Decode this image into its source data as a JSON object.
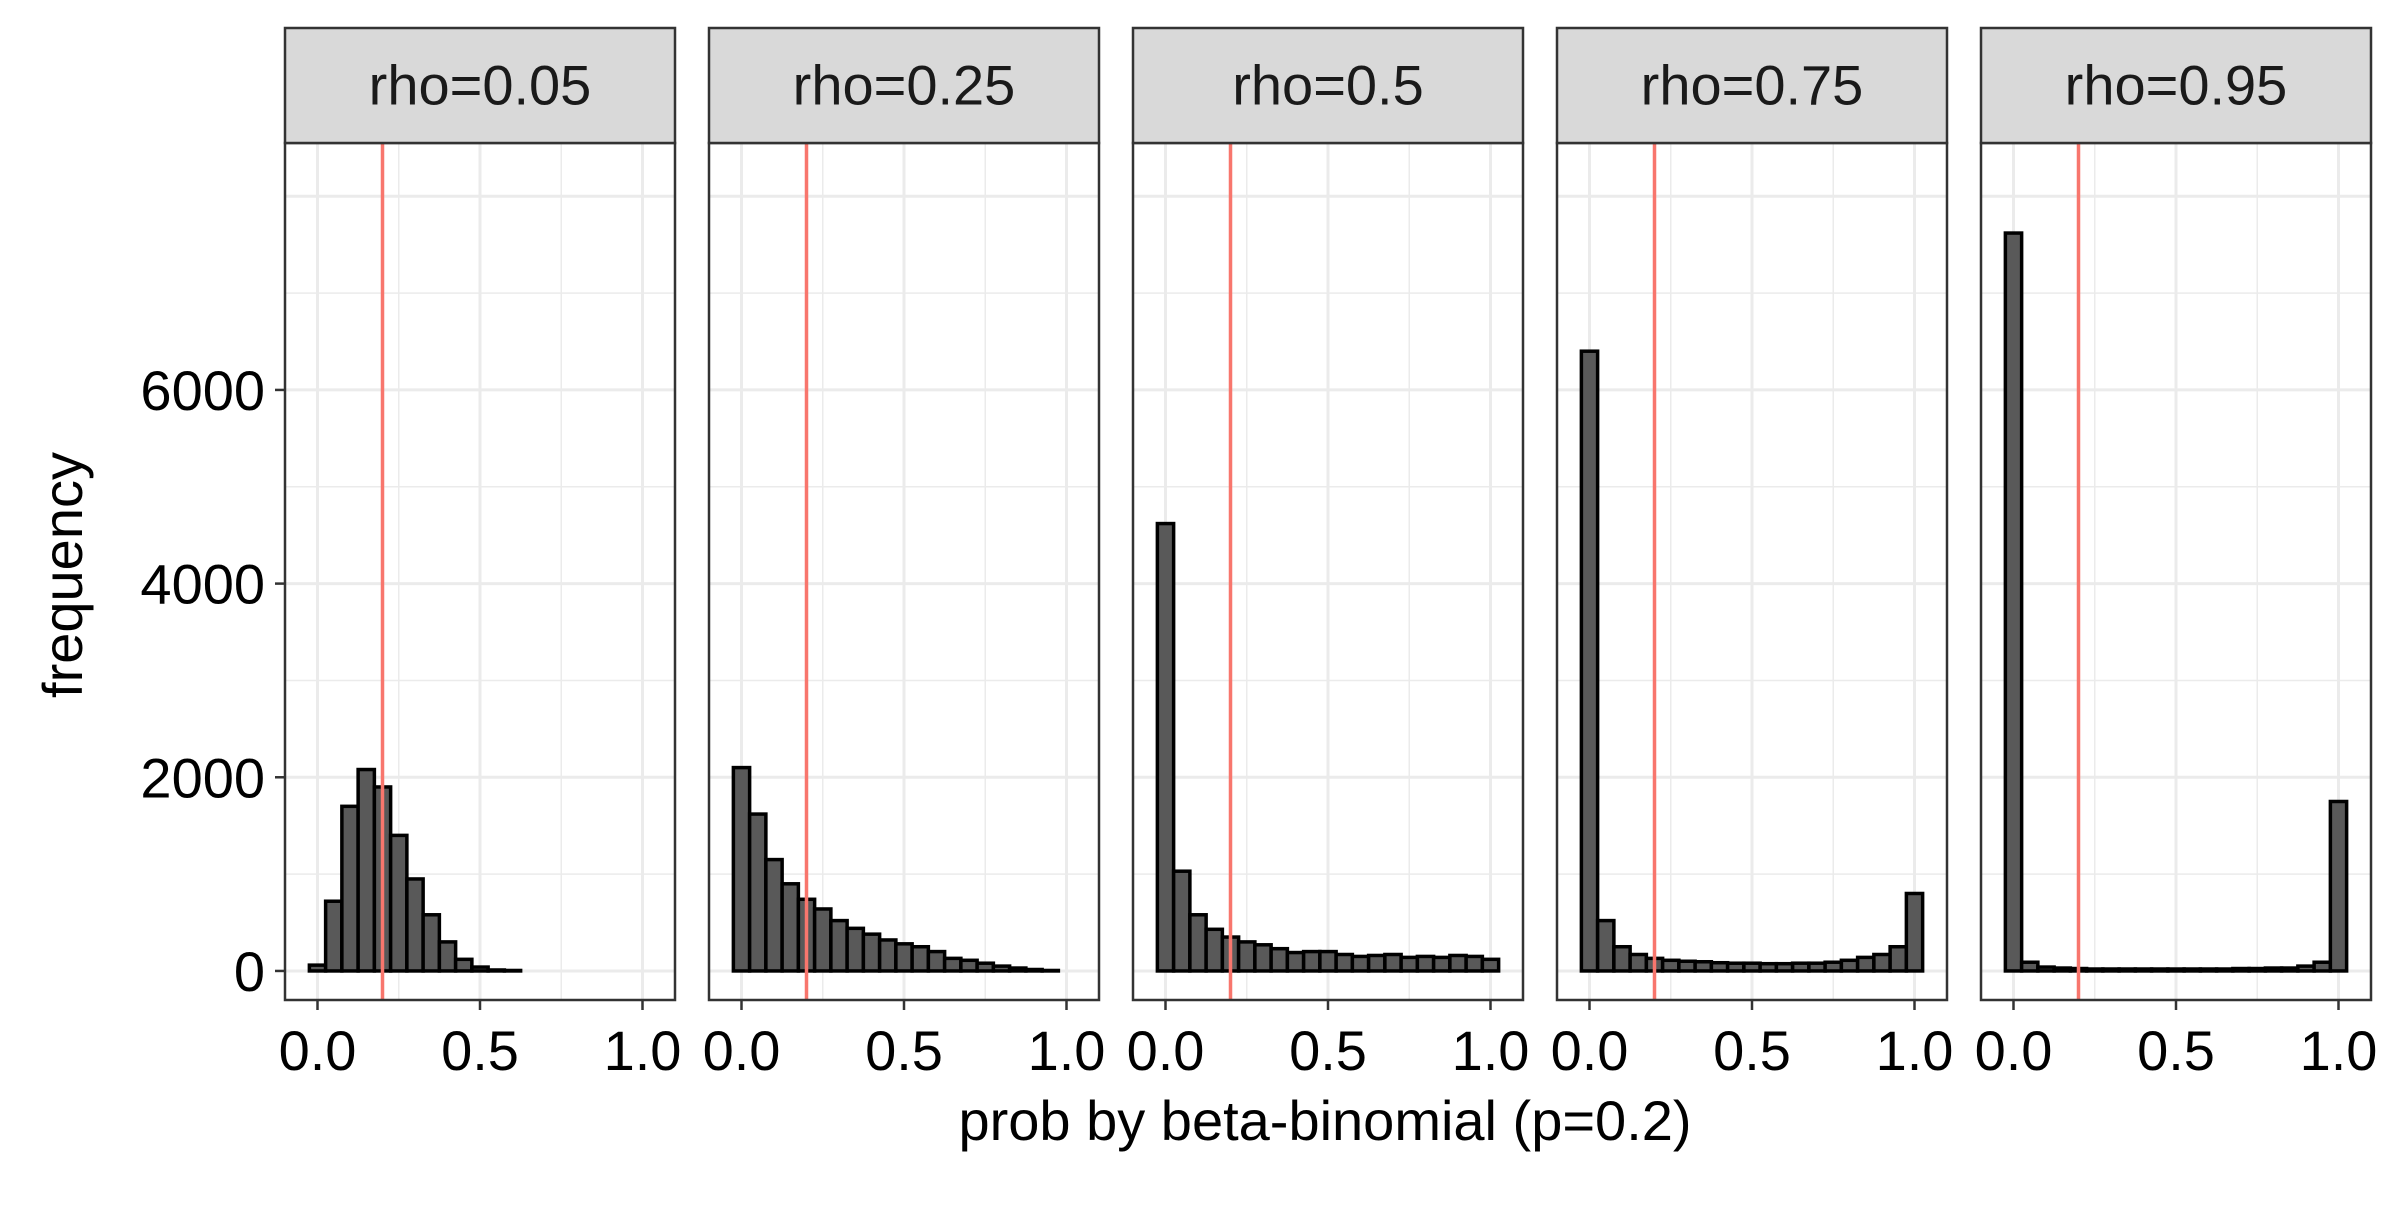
{
  "chart_data": {
    "type": "bar",
    "kind": "faceted-histogram",
    "xlabel": "prob by beta-binomial (p=0.2)",
    "ylabel": "frequency",
    "xlim": [
      -0.1,
      1.1
    ],
    "ylim": [
      -300,
      8550
    ],
    "x_ticks": [
      "0.0",
      "0.5",
      "1.0"
    ],
    "y_ticks": [
      "0",
      "2000",
      "4000",
      "6000"
    ],
    "x_tick_values": [
      0,
      0.5,
      1
    ],
    "y_tick_values": [
      0,
      2000,
      4000,
      6000
    ],
    "bin_width": 0.05,
    "reference_line": {
      "x": 0.2,
      "color": "#F8766D"
    },
    "grid": true,
    "colors": {
      "bar_fill": "#595959",
      "bar_outline": "#000000",
      "strip_fill": "#D9D9D9",
      "grid": "#EBEBEB",
      "panel_border": "#333333",
      "reference_line": "#F8766D"
    },
    "panels": [
      {
        "label": "rho=0.05",
        "bins": [
          {
            "x": -0.05,
            "y": 0
          },
          {
            "x": 0.0,
            "y": 60
          },
          {
            "x": 0.05,
            "y": 720
          },
          {
            "x": 0.1,
            "y": 1700
          },
          {
            "x": 0.15,
            "y": 2080
          },
          {
            "x": 0.2,
            "y": 1900
          },
          {
            "x": 0.25,
            "y": 1400
          },
          {
            "x": 0.3,
            "y": 950
          },
          {
            "x": 0.35,
            "y": 580
          },
          {
            "x": 0.4,
            "y": 300
          },
          {
            "x": 0.45,
            "y": 120
          },
          {
            "x": 0.5,
            "y": 40
          },
          {
            "x": 0.55,
            "y": 10
          },
          {
            "x": 0.6,
            "y": 5
          },
          {
            "x": 0.65,
            "y": 0
          },
          {
            "x": 0.7,
            "y": 0
          },
          {
            "x": 0.75,
            "y": 0
          },
          {
            "x": 0.8,
            "y": 0
          },
          {
            "x": 0.85,
            "y": 0
          },
          {
            "x": 0.9,
            "y": 0
          },
          {
            "x": 0.95,
            "y": 0
          },
          {
            "x": 1.0,
            "y": 0
          },
          {
            "x": 1.05,
            "y": 0
          }
        ]
      },
      {
        "label": "rho=0.25",
        "bins": [
          {
            "x": -0.05,
            "y": 0
          },
          {
            "x": 0.0,
            "y": 2100
          },
          {
            "x": 0.05,
            "y": 1620
          },
          {
            "x": 0.1,
            "y": 1150
          },
          {
            "x": 0.15,
            "y": 900
          },
          {
            "x": 0.2,
            "y": 740
          },
          {
            "x": 0.25,
            "y": 640
          },
          {
            "x": 0.3,
            "y": 520
          },
          {
            "x": 0.35,
            "y": 440
          },
          {
            "x": 0.4,
            "y": 380
          },
          {
            "x": 0.45,
            "y": 320
          },
          {
            "x": 0.5,
            "y": 280
          },
          {
            "x": 0.55,
            "y": 250
          },
          {
            "x": 0.6,
            "y": 200
          },
          {
            "x": 0.65,
            "y": 130
          },
          {
            "x": 0.7,
            "y": 110
          },
          {
            "x": 0.75,
            "y": 80
          },
          {
            "x": 0.8,
            "y": 50
          },
          {
            "x": 0.85,
            "y": 30
          },
          {
            "x": 0.9,
            "y": 15
          },
          {
            "x": 0.95,
            "y": 5
          },
          {
            "x": 1.0,
            "y": 0
          },
          {
            "x": 1.05,
            "y": 0
          }
        ]
      },
      {
        "label": "rho=0.5",
        "bins": [
          {
            "x": -0.05,
            "y": 0
          },
          {
            "x": 0.0,
            "y": 4620
          },
          {
            "x": 0.05,
            "y": 1030
          },
          {
            "x": 0.1,
            "y": 580
          },
          {
            "x": 0.15,
            "y": 430
          },
          {
            "x": 0.2,
            "y": 350
          },
          {
            "x": 0.25,
            "y": 300
          },
          {
            "x": 0.3,
            "y": 270
          },
          {
            "x": 0.35,
            "y": 230
          },
          {
            "x": 0.4,
            "y": 190
          },
          {
            "x": 0.45,
            "y": 200
          },
          {
            "x": 0.5,
            "y": 200
          },
          {
            "x": 0.55,
            "y": 170
          },
          {
            "x": 0.6,
            "y": 150
          },
          {
            "x": 0.65,
            "y": 160
          },
          {
            "x": 0.7,
            "y": 170
          },
          {
            "x": 0.75,
            "y": 140
          },
          {
            "x": 0.8,
            "y": 150
          },
          {
            "x": 0.85,
            "y": 140
          },
          {
            "x": 0.9,
            "y": 160
          },
          {
            "x": 0.95,
            "y": 150
          },
          {
            "x": 1.0,
            "y": 120
          },
          {
            "x": 1.05,
            "y": 0
          }
        ]
      },
      {
        "label": "rho=0.75",
        "bins": [
          {
            "x": -0.05,
            "y": 0
          },
          {
            "x": 0.0,
            "y": 6400
          },
          {
            "x": 0.05,
            "y": 520
          },
          {
            "x": 0.1,
            "y": 250
          },
          {
            "x": 0.15,
            "y": 170
          },
          {
            "x": 0.2,
            "y": 130
          },
          {
            "x": 0.25,
            "y": 110
          },
          {
            "x": 0.3,
            "y": 100
          },
          {
            "x": 0.35,
            "y": 95
          },
          {
            "x": 0.4,
            "y": 85
          },
          {
            "x": 0.45,
            "y": 80
          },
          {
            "x": 0.5,
            "y": 80
          },
          {
            "x": 0.55,
            "y": 75
          },
          {
            "x": 0.6,
            "y": 75
          },
          {
            "x": 0.65,
            "y": 80
          },
          {
            "x": 0.7,
            "y": 80
          },
          {
            "x": 0.75,
            "y": 90
          },
          {
            "x": 0.8,
            "y": 110
          },
          {
            "x": 0.85,
            "y": 140
          },
          {
            "x": 0.9,
            "y": 170
          },
          {
            "x": 0.95,
            "y": 250
          },
          {
            "x": 1.0,
            "y": 800
          },
          {
            "x": 1.05,
            "y": 0
          }
        ]
      },
      {
        "label": "rho=0.95",
        "bins": [
          {
            "x": -0.05,
            "y": 0
          },
          {
            "x": 0.0,
            "y": 7620
          },
          {
            "x": 0.05,
            "y": 90
          },
          {
            "x": 0.1,
            "y": 40
          },
          {
            "x": 0.15,
            "y": 30
          },
          {
            "x": 0.2,
            "y": 25
          },
          {
            "x": 0.25,
            "y": 20
          },
          {
            "x": 0.3,
            "y": 20
          },
          {
            "x": 0.35,
            "y": 20
          },
          {
            "x": 0.4,
            "y": 20
          },
          {
            "x": 0.45,
            "y": 20
          },
          {
            "x": 0.5,
            "y": 20
          },
          {
            "x": 0.55,
            "y": 20
          },
          {
            "x": 0.6,
            "y": 20
          },
          {
            "x": 0.65,
            "y": 20
          },
          {
            "x": 0.7,
            "y": 25
          },
          {
            "x": 0.75,
            "y": 25
          },
          {
            "x": 0.8,
            "y": 30
          },
          {
            "x": 0.85,
            "y": 30
          },
          {
            "x": 0.9,
            "y": 50
          },
          {
            "x": 0.95,
            "y": 90
          },
          {
            "x": 1.0,
            "y": 1750
          },
          {
            "x": 1.05,
            "y": 0
          }
        ]
      }
    ]
  }
}
